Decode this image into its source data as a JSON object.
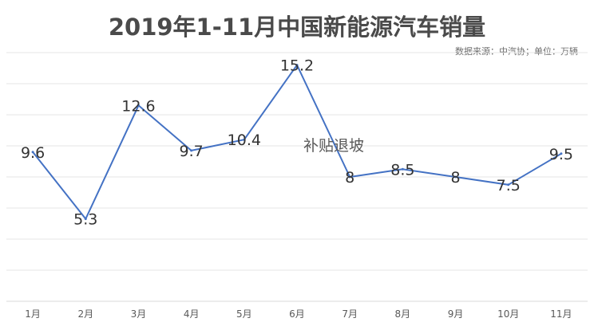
{
  "chart_data": {
    "type": "line",
    "title": "2019年1-11月中国新能源汽车销量",
    "source": "数据来源：中汽协；单位：万辆",
    "annotation": "补贴退坡",
    "categories": [
      "1月",
      "2月",
      "3月",
      "4月",
      "5月",
      "6月",
      "7月",
      "8月",
      "9月",
      "10月",
      "11月"
    ],
    "series": [
      {
        "values": [
          9.6,
          5.3,
          12.6,
          9.7,
          10.4,
          15.2,
          8,
          8.5,
          8,
          7.5,
          9.5
        ],
        "labels": [
          "9.6",
          "5.3",
          "12.6",
          "9.7",
          "10.4",
          "15.2",
          "8",
          "8.5",
          "8",
          "7.5",
          "9.5"
        ]
      }
    ],
    "ylim": [
      0,
      16
    ],
    "grid": true,
    "legend": "none",
    "colors": {
      "line": "#4472c4",
      "title": "#4a4a4a",
      "grid": "#e6e6e6"
    }
  }
}
